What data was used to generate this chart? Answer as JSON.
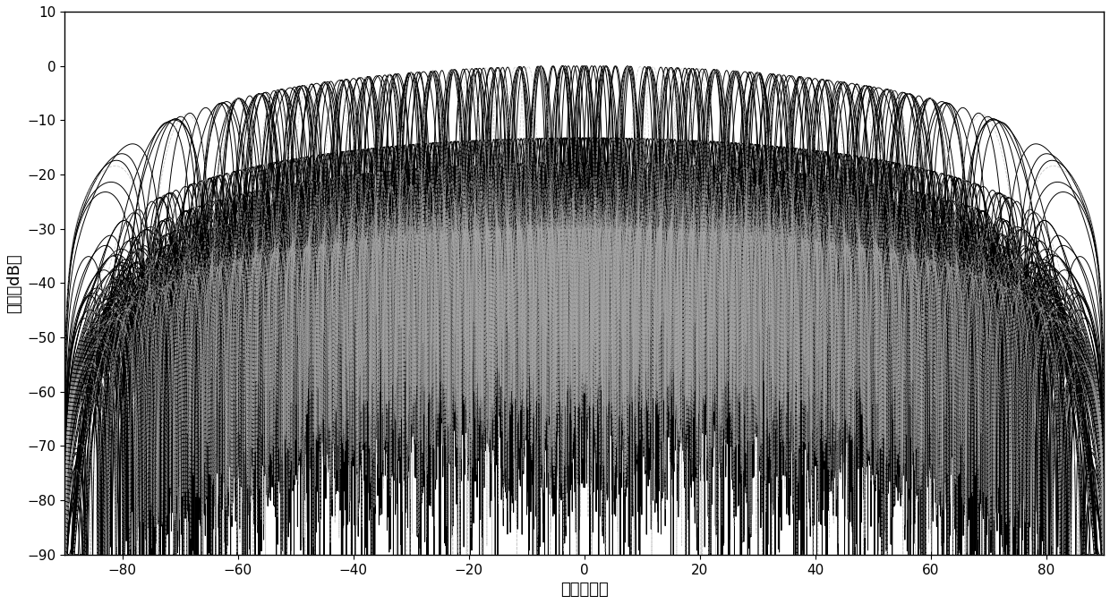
{
  "title": "",
  "xlabel": "角度（度）",
  "ylabel": "幅度（dB）",
  "xlim": [
    -90,
    90
  ],
  "ylim": [
    -90,
    10
  ],
  "xticks": [
    -80,
    -60,
    -40,
    -20,
    0,
    20,
    40,
    60,
    80
  ],
  "yticks": [
    -90,
    -80,
    -70,
    -60,
    -50,
    -40,
    -30,
    -20,
    -10,
    0,
    10
  ],
  "background_color": "#ffffff",
  "line_color": "#000000",
  "dashed_color": "#aaaaaa",
  "num_elements": 32,
  "num_beams": 33,
  "beam_center_start": -60,
  "beam_center_end": 60,
  "freq_ratio_min": 0.75,
  "freq_ratio_max": 1.25,
  "num_frequencies": 5,
  "clip_min": -90,
  "xlabel_fontsize": 13,
  "ylabel_fontsize": 13,
  "tick_fontsize": 11,
  "linewidth": 0.7
}
